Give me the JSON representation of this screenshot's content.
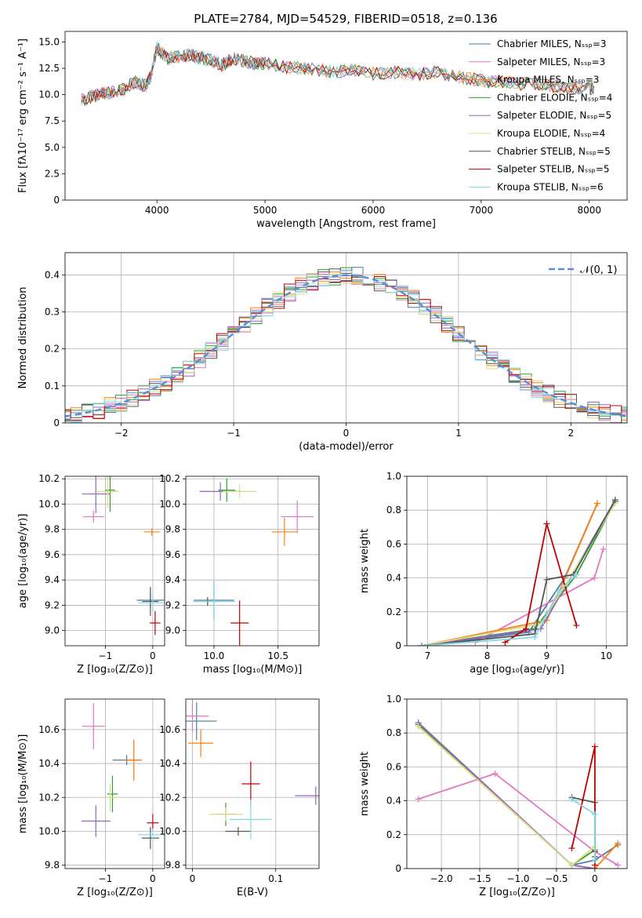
{
  "figure_title": "PLATE=2784, MJD=54529, FIBERID=0518, z=0.136",
  "colors": [
    "#4e79a7",
    "#e377c2",
    "#ff7f0e",
    "#2ca02c",
    "#9467bd",
    "#dbdb8d",
    "#555555",
    "#c00000",
    "#80d8e0"
  ],
  "chart_data": [
    {
      "type": "line",
      "id": "spectrum",
      "xlabel": "wavelength [Angstrom, rest frame]",
      "ylabel": "Flux [fλ10⁻¹⁷ erg cm⁻² s⁻¹ A⁻¹]",
      "xlim": [
        3150,
        8350
      ],
      "ylim": [
        0,
        16
      ],
      "xticks": [
        4000,
        5000,
        6000,
        7000,
        8000
      ],
      "yticks": [
        0.0,
        2.5,
        5.0,
        7.5,
        10.0,
        12.5,
        15.0
      ],
      "grid": false,
      "legend_position": "top-right",
      "x": [
        3300,
        3400,
        3500,
        3600,
        3700,
        3800,
        3900,
        3950,
        4000,
        4100,
        4200,
        4300,
        4400,
        4500,
        4600,
        4700,
        4800,
        4900,
        5000,
        5200,
        5400,
        5600,
        5800,
        6000,
        6200,
        6400,
        6600,
        6800,
        7000,
        7200,
        7400,
        7600,
        7800,
        8000,
        8050
      ],
      "y": [
        9.5,
        9.8,
        10.1,
        10.3,
        10.6,
        11.2,
        10.8,
        12.0,
        14.5,
        13.4,
        13.6,
        13.8,
        13.5,
        13.3,
        12.8,
        13.4,
        13.2,
        13.0,
        13.0,
        12.6,
        12.5,
        12.2,
        12.3,
        12.0,
        12.1,
        11.9,
        12.2,
        11.6,
        11.3,
        11.2,
        11.0,
        10.9,
        10.7,
        10.6,
        10.6
      ],
      "series": [
        {
          "name": "Chabrier MILES, Nₛₛₚ=3"
        },
        {
          "name": "Salpeter MILES, Nₛₛₚ=3"
        },
        {
          "name": "Kroupa MILES, Nₛₛₚ=3"
        },
        {
          "name": "Chabrier ELODIE, Nₛₛₚ=4"
        },
        {
          "name": "Salpeter ELODIE, Nₛₛₚ=5"
        },
        {
          "name": "Kroupa ELODIE, Nₛₛₚ=4"
        },
        {
          "name": "Chabrier STELIB, Nₛₛₚ=5"
        },
        {
          "name": "Salpeter STELIB, Nₛₛₚ=5"
        },
        {
          "name": "Kroupa STELIB, Nₛₛₚ=6"
        }
      ]
    },
    {
      "type": "line",
      "id": "residuals",
      "xlabel": "(data-model)/error",
      "ylabel": "Normed distribution",
      "xlim": [
        -2.5,
        2.5
      ],
      "ylim": [
        0,
        0.46
      ],
      "xticks": [
        -2,
        -1,
        0,
        1,
        2
      ],
      "yticks": [
        0.0,
        0.1,
        0.2,
        0.3,
        0.4
      ],
      "grid": true,
      "legend_position": "top-right",
      "legend": "𝒩(0, 1)",
      "x": [
        -2.5,
        -2.0,
        -1.5,
        -1.0,
        -0.5,
        0.0,
        0.5,
        1.0,
        1.5,
        2.0,
        2.5
      ],
      "y": [
        0.035,
        0.06,
        0.14,
        0.24,
        0.34,
        0.38,
        0.36,
        0.25,
        0.14,
        0.06,
        0.035
      ]
    },
    {
      "type": "scatter",
      "id": "age-vs-Z",
      "xlabel": "Z [log₁₀(Z/Z⊙)]",
      "ylabel": "age  [log₁₀(age/yr)]",
      "xlim": [
        -1.85,
        0.25
      ],
      "ylim": [
        8.88,
        10.22
      ],
      "xticks": [
        -1,
        0
      ],
      "yticks": [
        9.0,
        9.2,
        9.4,
        9.6,
        9.8,
        10.0,
        10.2
      ],
      "grid": true,
      "points": [
        {
          "x": -0.05,
          "y": 9.24,
          "series": 0
        },
        {
          "x": -1.25,
          "y": 9.9,
          "series": 1
        },
        {
          "x": -0.02,
          "y": 9.78,
          "series": 2
        },
        {
          "x": -0.9,
          "y": 10.11,
          "series": 3
        },
        {
          "x": -1.2,
          "y": 10.08,
          "series": 4
        },
        {
          "x": -0.95,
          "y": 10.1,
          "series": 5
        },
        {
          "x": -0.05,
          "y": 9.23,
          "series": 6
        },
        {
          "x": 0.05,
          "y": 9.06,
          "series": 7
        },
        {
          "x": 0.0,
          "y": 9.22,
          "series": 8
        }
      ]
    },
    {
      "type": "scatter",
      "id": "age-vs-mass",
      "xlabel": "mass [log₁₀(M/M⊙)]",
      "ylabel": "",
      "xlim": [
        9.78,
        10.82
      ],
      "ylim": [
        8.88,
        10.22
      ],
      "xticks": [
        10.0,
        10.5
      ],
      "yticks": [
        9.0,
        9.2,
        9.4,
        9.6,
        9.8,
        10.0,
        10.2
      ],
      "grid": true,
      "points": [
        {
          "x": 10.0,
          "y": 9.24,
          "series": 0
        },
        {
          "x": 10.65,
          "y": 9.9,
          "series": 1
        },
        {
          "x": 10.55,
          "y": 9.78,
          "series": 2
        },
        {
          "x": 10.1,
          "y": 10.11,
          "series": 3
        },
        {
          "x": 10.05,
          "y": 10.1,
          "series": 4
        },
        {
          "x": 10.2,
          "y": 10.1,
          "series": 5
        },
        {
          "x": 9.95,
          "y": 9.23,
          "series": 6
        },
        {
          "x": 10.2,
          "y": 9.06,
          "series": 7
        },
        {
          "x": 10.0,
          "y": 9.23,
          "series": 8
        }
      ]
    },
    {
      "type": "line",
      "id": "massweight-vs-age",
      "xlabel": "age  [log₁₀(age/yr)]",
      "ylabel": "mass weight",
      "xlim": [
        6.65,
        10.35
      ],
      "ylim": [
        0,
        1.0
      ],
      "xticks": [
        7,
        8,
        9,
        10
      ],
      "yticks": [
        0.0,
        0.2,
        0.4,
        0.6,
        0.8,
        1.0
      ],
      "grid": true,
      "series": [
        {
          "x": [
            6.9,
            8.7,
            9.3,
            9.85
          ],
          "y": [
            0.0,
            0.08,
            0.4,
            0.84
          ]
        },
        {
          "x": [
            7.8,
            9.8,
            9.95
          ],
          "y": [
            0.02,
            0.4,
            0.57
          ]
        },
        {
          "x": [
            6.9,
            9.0,
            9.85
          ],
          "y": [
            0.0,
            0.15,
            0.84
          ]
        },
        {
          "x": [
            6.9,
            8.8,
            9.5,
            10.15
          ],
          "y": [
            0.0,
            0.1,
            0.42,
            0.85
          ]
        },
        {
          "x": [
            6.9,
            8.9,
            10.15
          ],
          "y": [
            0.0,
            0.1,
            0.86
          ]
        },
        {
          "x": [
            6.9,
            8.9,
            9.3,
            10.15
          ],
          "y": [
            0.0,
            0.13,
            0.35,
            0.84
          ]
        },
        {
          "x": [
            6.9,
            8.8,
            9.0,
            9.45,
            10.15
          ],
          "y": [
            0.0,
            0.07,
            0.39,
            0.42,
            0.86
          ]
        },
        {
          "x": [
            8.3,
            8.65,
            9.0,
            9.5
          ],
          "y": [
            0.02,
            0.1,
            0.72,
            0.12
          ]
        },
        {
          "x": [
            6.9,
            8.8,
            9.2,
            9.5
          ],
          "y": [
            0.0,
            0.05,
            0.32,
            0.42
          ]
        }
      ]
    },
    {
      "type": "scatter",
      "id": "mass-vs-Z",
      "xlabel": "Z [log₁₀(Z/Z⊙)]",
      "ylabel": "mass [log₁₀(M/M⊙)]",
      "xlim": [
        -1.85,
        0.25
      ],
      "ylim": [
        9.78,
        10.78
      ],
      "xticks": [
        -1,
        0
      ],
      "yticks": [
        9.8,
        10.0,
        10.2,
        10.4,
        10.6
      ],
      "grid": true,
      "points": [
        {
          "x": -0.55,
          "y": 10.42,
          "series": 0
        },
        {
          "x": -1.25,
          "y": 10.62,
          "series": 1
        },
        {
          "x": -0.4,
          "y": 10.42,
          "series": 2
        },
        {
          "x": -0.85,
          "y": 10.22,
          "series": 3
        },
        {
          "x": -1.2,
          "y": 10.06,
          "series": 4
        },
        {
          "x": -0.9,
          "y": 10.2,
          "series": 5
        },
        {
          "x": -0.05,
          "y": 9.96,
          "series": 6
        },
        {
          "x": 0.0,
          "y": 10.05,
          "series": 7
        },
        {
          "x": 0.0,
          "y": 9.98,
          "series": 8
        }
      ]
    },
    {
      "type": "scatter",
      "id": "mass-vs-ebv",
      "xlabel": "E(B-V)",
      "ylabel": "",
      "xlim": [
        -0.008,
        0.152
      ],
      "ylim": [
        9.78,
        10.78
      ],
      "xticks": [
        0.0,
        0.1
      ],
      "yticks": [
        9.8,
        10.0,
        10.2,
        10.4,
        10.6
      ],
      "grid": true,
      "points": [
        {
          "x": 0.005,
          "y": 10.65,
          "series": 0
        },
        {
          "x": 0.0,
          "y": 10.68,
          "series": 1
        },
        {
          "x": 0.01,
          "y": 10.52,
          "series": 2
        },
        {
          "x": 0.04,
          "y": 10.1,
          "series": 3
        },
        {
          "x": 0.148,
          "y": 10.21,
          "series": 4
        },
        {
          "x": 0.04,
          "y": 10.1,
          "series": 5
        },
        {
          "x": 0.055,
          "y": 10.0,
          "series": 6
        },
        {
          "x": 0.07,
          "y": 10.28,
          "series": 7
        },
        {
          "x": 0.07,
          "y": 10.07,
          "series": 8
        }
      ]
    },
    {
      "type": "line",
      "id": "massweight-vs-Z",
      "xlabel": "Z [log₁₀(Z/Z⊙)]",
      "ylabel": "mass weight",
      "xlim": [
        -2.45,
        0.42
      ],
      "ylim": [
        0,
        1.0
      ],
      "xticks": [
        -2.0,
        -1.5,
        -1.0,
        -0.5,
        0.0
      ],
      "yticks": [
        0.0,
        0.2,
        0.4,
        0.6,
        0.8,
        1.0
      ],
      "grid": true,
      "series": [
        {
          "x": [
            -2.3,
            -0.3,
            0.0,
            0.3
          ],
          "y": [
            0.86,
            0.02,
            0.05,
            0.14
          ]
        },
        {
          "x": [
            -2.3,
            -1.3,
            0.0,
            0.3
          ],
          "y": [
            0.41,
            0.56,
            0.1,
            0.02
          ]
        },
        {
          "x": [
            -2.3,
            -0.3,
            0.0,
            0.3
          ],
          "y": [
            0.84,
            0.02,
            0.0,
            0.15
          ]
        },
        {
          "x": [
            -2.3,
            -0.3,
            0.0
          ],
          "y": [
            0.85,
            0.02,
            0.11
          ]
        },
        {
          "x": [
            -2.3,
            -0.3,
            0.0
          ],
          "y": [
            0.86,
            0.02,
            0.0
          ]
        },
        {
          "x": [
            -2.3,
            -0.3,
            0.0
          ],
          "y": [
            0.84,
            0.02,
            0.13
          ]
        },
        {
          "x": [
            -0.3,
            0.0,
            0.0
          ],
          "y": [
            0.42,
            0.39,
            0.07
          ]
        },
        {
          "x": [
            -0.3,
            0.0,
            0.0,
            0.0
          ],
          "y": [
            0.12,
            0.72,
            0.1,
            0.02
          ]
        },
        {
          "x": [
            -0.3,
            0.0,
            0.0
          ],
          "y": [
            0.41,
            0.32,
            0.05
          ]
        }
      ]
    }
  ]
}
